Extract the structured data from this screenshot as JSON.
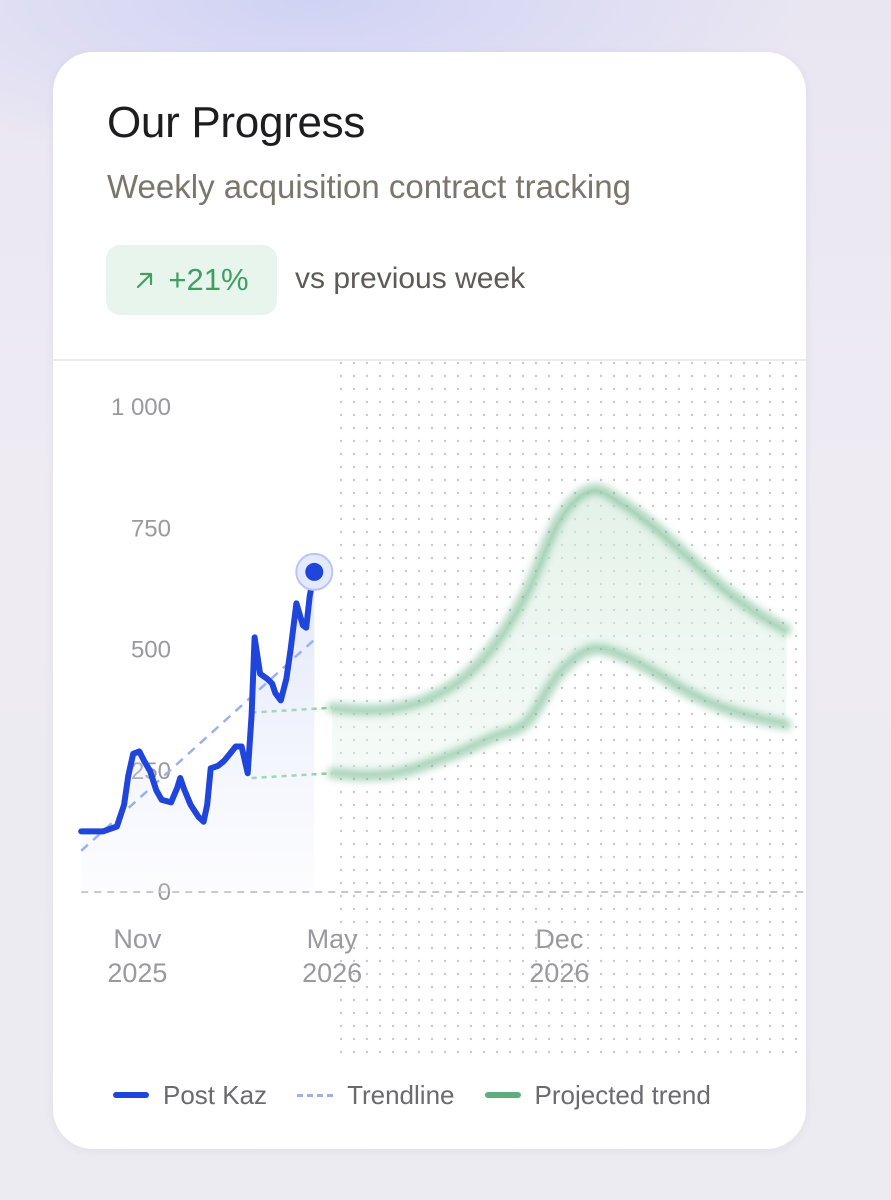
{
  "header": {
    "title": "Our Progress",
    "subtitle": "Weekly acquisition contract tracking"
  },
  "badge": {
    "icon": "arrow-up-right-icon",
    "value": "+21%",
    "caption": "vs previous week",
    "color": "#3f9e63",
    "background": "#e8f5ec"
  },
  "legend": {
    "items": [
      {
        "label": "Post Kaz",
        "color": "#1f45dc",
        "style": "solid"
      },
      {
        "label": "Trendline",
        "color": "#9cb1e6",
        "style": "dashed"
      },
      {
        "label": "Projected trend",
        "color": "#5fad7f",
        "style": "solid"
      }
    ]
  },
  "chart_data": {
    "type": "line",
    "title": "",
    "xlabel": "",
    "ylabel": "",
    "ylim": [
      0,
      1000
    ],
    "y_ticks": [
      {
        "value": 0,
        "label": "0"
      },
      {
        "value": 250,
        "label": "250"
      },
      {
        "value": 500,
        "label": "500"
      },
      {
        "value": 750,
        "label": "750"
      },
      {
        "value": 1000,
        "label": "1 000"
      }
    ],
    "xlim": [
      -2.6,
      20.6
    ],
    "x_ticks": [
      {
        "value": 0,
        "line1": "Nov",
        "line2": "2025"
      },
      {
        "value": 6,
        "line1": "May",
        "line2": "2026"
      },
      {
        "value": 13,
        "line1": "Dec",
        "line2": "2026"
      }
    ],
    "projection_start": 6,
    "series": [
      {
        "name": "Post Kaz",
        "color": "#1f45dc",
        "points": [
          [
            -1.73,
            125
          ],
          [
            -1.06,
            125
          ],
          [
            -0.63,
            135
          ],
          [
            -0.41,
            180
          ],
          [
            -0.28,
            240
          ],
          [
            -0.13,
            285
          ],
          [
            0.06,
            290
          ],
          [
            0.21,
            270
          ],
          [
            0.39,
            250
          ],
          [
            0.58,
            210
          ],
          [
            0.75,
            190
          ],
          [
            1.04,
            185
          ],
          [
            1.23,
            215
          ],
          [
            1.32,
            235
          ],
          [
            1.45,
            210
          ],
          [
            1.64,
            180
          ],
          [
            1.88,
            155
          ],
          [
            2.04,
            145
          ],
          [
            2.15,
            180
          ],
          [
            2.26,
            255
          ],
          [
            2.48,
            260
          ],
          [
            2.67,
            270
          ],
          [
            2.85,
            285
          ],
          [
            3.03,
            300
          ],
          [
            3.21,
            300
          ],
          [
            3.4,
            245
          ],
          [
            3.52,
            365
          ],
          [
            3.61,
            525
          ],
          [
            3.78,
            450
          ],
          [
            3.99,
            440
          ],
          [
            4.15,
            430
          ],
          [
            4.25,
            410
          ],
          [
            4.42,
            395
          ],
          [
            4.59,
            440
          ],
          [
            4.72,
            500
          ],
          [
            4.9,
            595
          ],
          [
            5.1,
            550
          ],
          [
            5.2,
            545
          ],
          [
            5.31,
            610
          ],
          [
            5.45,
            660
          ]
        ],
        "last_value": 660
      },
      {
        "name": "Trendline",
        "color": "#9cb1e6",
        "points": [
          [
            -1.73,
            85
          ],
          [
            5.45,
            520
          ]
        ]
      }
    ],
    "projection_links": [
      {
        "points": [
          [
            3.52,
            370
          ],
          [
            6,
            380
          ]
        ],
        "color": "#7fd39a"
      },
      {
        "points": [
          [
            3.52,
            235
          ],
          [
            6,
            245
          ]
        ],
        "color": "#7fd39a"
      }
    ],
    "projected_trend": {
      "color": "#5fad7f",
      "upper": [
        [
          6,
          380
        ],
        [
          7,
          375
        ],
        [
          8,
          380
        ],
        [
          9,
          400
        ],
        [
          10,
          440
        ],
        [
          11,
          510
        ],
        [
          12,
          620
        ],
        [
          13,
          770
        ],
        [
          14,
          830
        ],
        [
          15,
          800
        ],
        [
          16,
          750
        ],
        [
          17,
          690
        ],
        [
          18,
          630
        ],
        [
          19,
          580
        ],
        [
          20,
          540
        ]
      ],
      "lower": [
        [
          6,
          245
        ],
        [
          7,
          240
        ],
        [
          8,
          245
        ],
        [
          9,
          265
        ],
        [
          10,
          290
        ],
        [
          11,
          320
        ],
        [
          12,
          350
        ],
        [
          13,
          450
        ],
        [
          14,
          500
        ],
        [
          15,
          485
        ],
        [
          16,
          450
        ],
        [
          17,
          410
        ],
        [
          18,
          380
        ],
        [
          19,
          360
        ],
        [
          20,
          345
        ]
      ]
    }
  }
}
